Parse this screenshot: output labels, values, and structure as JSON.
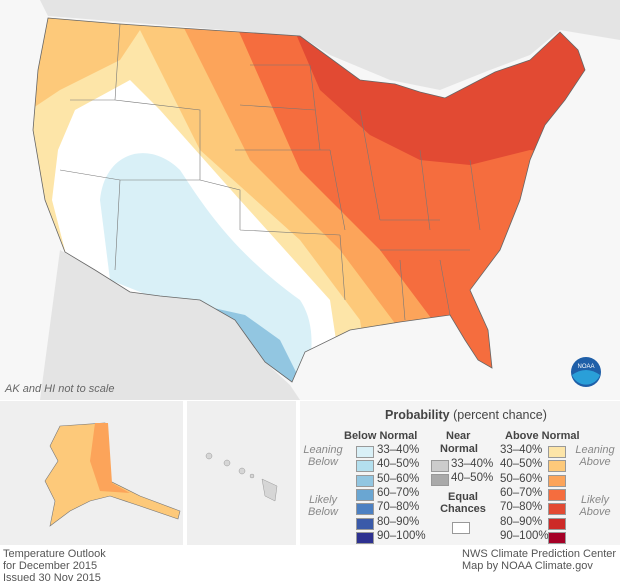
{
  "note": "AK and HI not to scale",
  "legend": {
    "title": "Probability",
    "title_sub": "(percent chance)",
    "below_header": "Below Normal",
    "near_header_1": "Near",
    "near_header_2": "Normal",
    "above_header": "Above Normal",
    "leaning_below_1": "Leaning",
    "leaning_below_2": "Below",
    "likely_below_1": "Likely",
    "likely_below_2": "Below",
    "leaning_above_1": "Leaning",
    "leaning_above_2": "Above",
    "likely_above_1": "Likely",
    "likely_above_2": "Above",
    "equal_1": "Equal",
    "equal_2": "Chances",
    "below": [
      {
        "label": "33–40%",
        "color": "#d9f0f7"
      },
      {
        "label": "40–50%",
        "color": "#b3dfee"
      },
      {
        "label": "50–60%",
        "color": "#92c6e1"
      },
      {
        "label": "60–70%",
        "color": "#6aa6d2"
      },
      {
        "label": "70–80%",
        "color": "#4c80c2"
      },
      {
        "label": "80–90%",
        "color": "#3a5aa9"
      },
      {
        "label": "90–100%",
        "color": "#2d3190"
      }
    ],
    "near": [
      {
        "label": "33–40%",
        "color": "#cccccc"
      },
      {
        "label": "40–50%",
        "color": "#a9a9a9"
      }
    ],
    "above": [
      {
        "label": "33–40%",
        "color": "#fde5a8"
      },
      {
        "label": "40–50%",
        "color": "#fdc97a"
      },
      {
        "label": "50–60%",
        "color": "#fca45a"
      },
      {
        "label": "60–70%",
        "color": "#f56d3e"
      },
      {
        "label": "70–80%",
        "color": "#e24a33"
      },
      {
        "label": "80–90%",
        "color": "#cd2a27"
      },
      {
        "label": "90–100%",
        "color": "#a50026"
      }
    ]
  },
  "footer": {
    "left": [
      "Temperature Outlook",
      "for December 2015",
      "Issued 30 Nov 2015"
    ],
    "right": [
      "NWS Climate Prediction Center",
      "Map by NOAA Climate.gov"
    ]
  },
  "logo": "NOAA"
}
